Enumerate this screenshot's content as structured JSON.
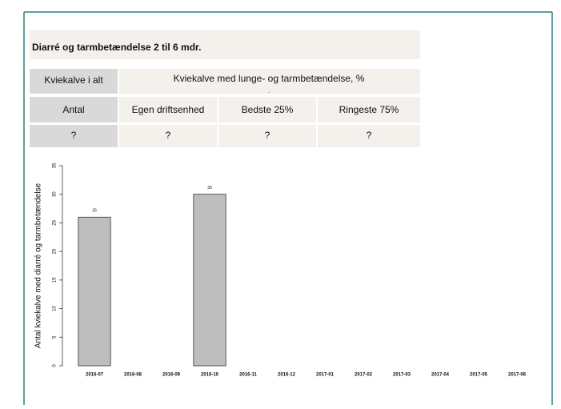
{
  "table": {
    "title": "Diarré og tarmbetændelse 2 til 6 mdr.",
    "rows": [
      [
        "Kviekalve i alt",
        "Kviekalve med lunge- og tarmbetændelse, %"
      ],
      [
        "Antal",
        "Egen driftsenhed",
        "Bedste 25%",
        "Ringeste 75%"
      ],
      [
        "?",
        "?",
        "?",
        "?"
      ]
    ],
    "mark": "."
  },
  "chart_data": {
    "type": "bar",
    "ylabel": "Antal kviekalve med diarré og tarmbetændelse",
    "categories": [
      "2016-07",
      "2016-08",
      "2016-09",
      "2016-10",
      "2016-11",
      "2016-12",
      "2017-01",
      "2017-02",
      "2017-03",
      "2017-04",
      "2017-05",
      "2017-06"
    ],
    "values": [
      26,
      null,
      null,
      30,
      null,
      null,
      null,
      null,
      null,
      null,
      null,
      null
    ],
    "color": "#bebebe",
    "ylim": [
      0,
      35
    ],
    "yticks": [
      0,
      5,
      10,
      15,
      20,
      25,
      30,
      35
    ]
  }
}
